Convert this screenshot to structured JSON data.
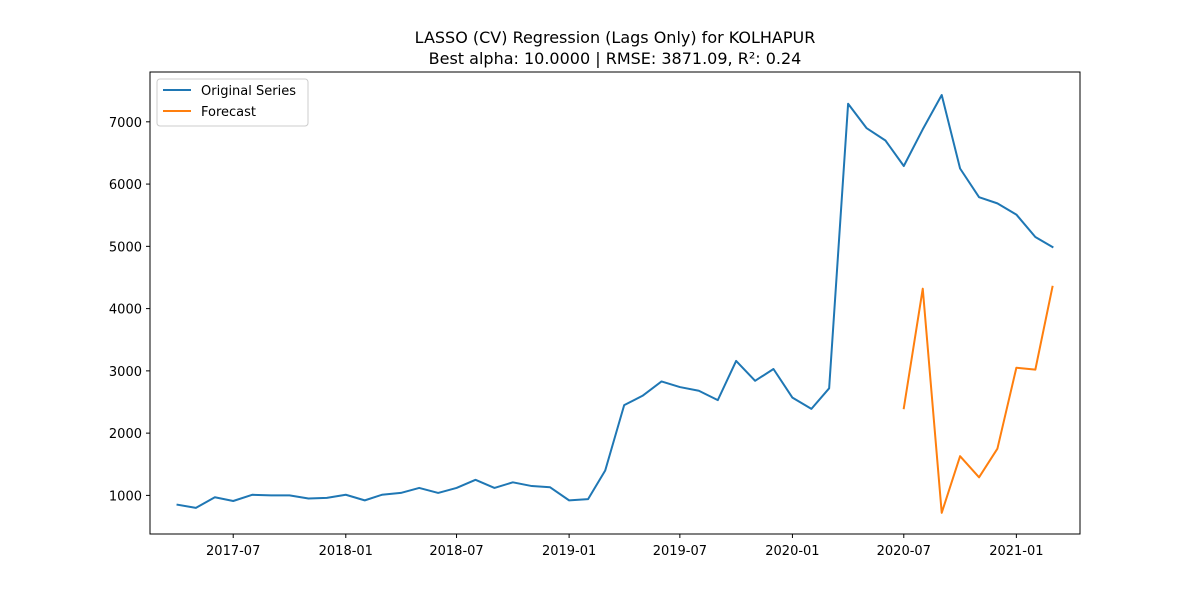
{
  "chart_data": {
    "type": "line",
    "title": "LASSO (CV) Regression (Lags Only) for KOLHAPUR",
    "subtitle": "Best alpha: 10.0000 | RMSE: 3871.09, R²: 0.24",
    "xlabel": "",
    "ylabel": "",
    "xlim": [
      "2017-02-15",
      "2021-04-15"
    ],
    "ylim": [
      380,
      7800
    ],
    "grid": false,
    "legend": "top-left",
    "x_ticks": [
      "2017-07",
      "2018-01",
      "2018-07",
      "2019-01",
      "2019-07",
      "2020-01",
      "2020-07",
      "2021-01"
    ],
    "y_ticks": [
      1000,
      2000,
      3000,
      4000,
      5000,
      6000,
      7000
    ],
    "series": [
      {
        "name": "Original Series",
        "color": "#1f77b4",
        "x": [
          "2017-04",
          "2017-05",
          "2017-06",
          "2017-07",
          "2017-08",
          "2017-09",
          "2017-10",
          "2017-11",
          "2017-12",
          "2018-01",
          "2018-02",
          "2018-03",
          "2018-04",
          "2018-05",
          "2018-06",
          "2018-07",
          "2018-08",
          "2018-09",
          "2018-10",
          "2018-11",
          "2018-12",
          "2019-01",
          "2019-02",
          "2019-03",
          "2019-04",
          "2019-05",
          "2019-06",
          "2019-07",
          "2019-08",
          "2019-09",
          "2019-10",
          "2019-11",
          "2019-12",
          "2020-01",
          "2020-02",
          "2020-03",
          "2020-04",
          "2020-05",
          "2020-06",
          "2020-07",
          "2020-08",
          "2020-09",
          "2020-10",
          "2020-11",
          "2020-12",
          "2021-01",
          "2021-02",
          "2021-03"
        ],
        "values": [
          850,
          800,
          970,
          910,
          1010,
          1000,
          1000,
          950,
          960,
          1010,
          920,
          1010,
          1040,
          1120,
          1040,
          1120,
          1250,
          1120,
          1210,
          1150,
          1130,
          920,
          940,
          1400,
          2450,
          2600,
          2830,
          2740,
          2680,
          2530,
          3160,
          2840,
          3030,
          2570,
          2390,
          2720,
          7290,
          6900,
          6700,
          6290,
          6880,
          7430,
          6250,
          5790,
          5690,
          5510,
          5150,
          4990
        ]
      },
      {
        "name": "Forecast",
        "color": "#ff7f0e",
        "x": [
          "2020-07",
          "2020-08",
          "2020-09",
          "2020-10",
          "2020-11",
          "2020-12",
          "2021-01",
          "2021-02",
          "2021-03"
        ],
        "values": [
          2400,
          4320,
          720,
          1630,
          1290,
          1750,
          3050,
          3020,
          4350
        ]
      }
    ]
  }
}
